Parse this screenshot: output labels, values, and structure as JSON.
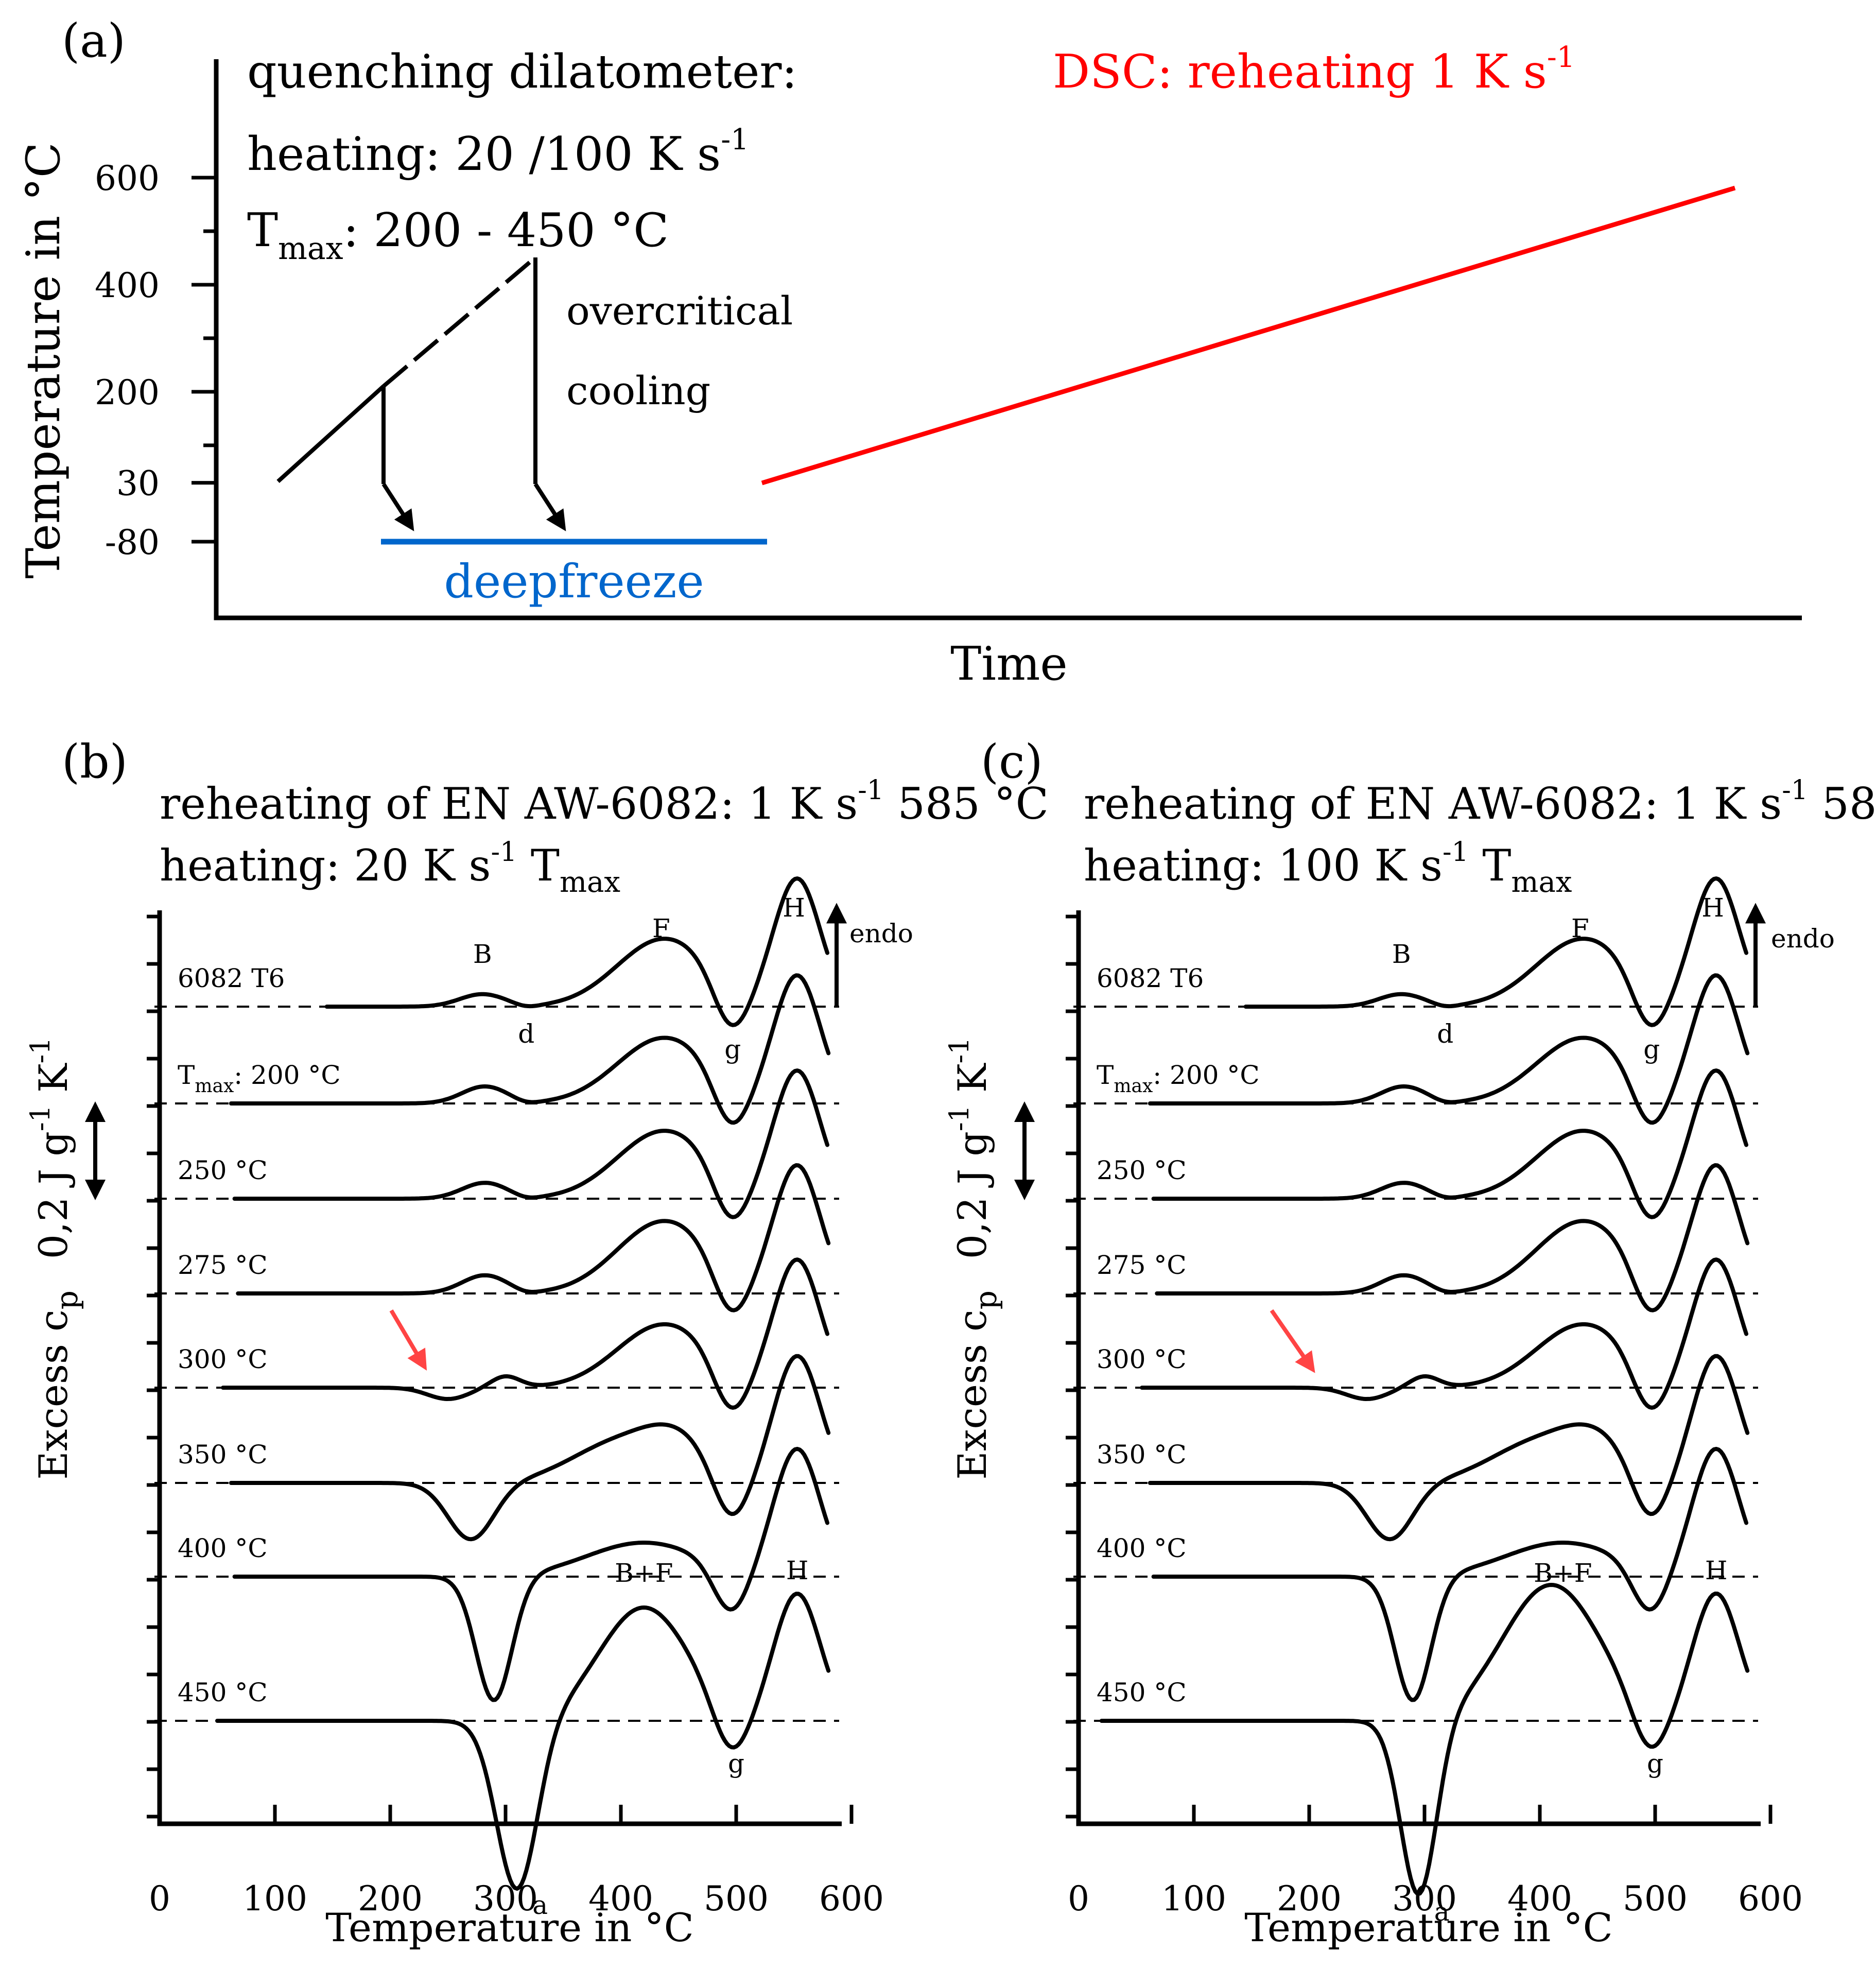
{
  "chart_data": [
    {
      "panel": "(a)",
      "type": "line",
      "xlabel": "Time",
      "ylabel": "Temperature in °C",
      "y_ticks": [
        "-80",
        "30",
        "200",
        "400",
        "600"
      ],
      "ylim": [
        -80,
        600
      ],
      "annotations": {
        "dilatometer": "quenching dilatometer:",
        "heating": "heating: 20 /100 K s",
        "heating_sup": "-1",
        "tmax_main": "T",
        "tmax_sub": "max",
        "tmax_range": ": 200 - 450 °C",
        "overcritical": "overcritical",
        "cooling": "cooling",
        "deepfreeze": "deepfreeze",
        "dsc": "DSC: reheating 1 K s",
        "dsc_sup": "-1"
      },
      "colors": {
        "dsc": "#ff0000",
        "deepfreeze": "#0066cc"
      },
      "series": [
        {
          "name": "heating to 200 °C",
          "points": [
            [
              0.0,
              30
            ],
            [
              0.16,
              200
            ]
          ]
        },
        {
          "name": "heating to 450 °C (dashed)",
          "points": [
            [
              0.16,
              200
            ],
            [
              0.41,
              450
            ]
          ]
        },
        {
          "name": "cooling from 200 °C",
          "points": [
            [
              0.16,
              200
            ],
            [
              0.16,
              -80
            ]
          ]
        },
        {
          "name": "cooling from 450 °C",
          "points": [
            [
              0.41,
              450
            ],
            [
              0.41,
              -80
            ]
          ]
        },
        {
          "name": "deepfreeze",
          "points": [
            [
              0.16,
              -80
            ],
            [
              0.77,
              -80
            ]
          ]
        },
        {
          "name": "DSC reheating",
          "points": [
            [
              0.77,
              30
            ],
            [
              2.3,
              585
            ]
          ]
        }
      ]
    },
    {
      "panel": "(b)",
      "type": "line",
      "title_line1": "reheating of EN AW-6082: 1 K s",
      "title_line1_sup": "-1",
      "title_line1_end": " 585 °C",
      "title_line2": "heating: 20 K s",
      "title_line2_sup": "-1",
      "title_line2_tmax": " T",
      "title_line2_sub": "max",
      "xlabel": "Temperature in °C",
      "ylabel_main": "Excess c",
      "ylabel_sub": "p",
      "scale_label": "0,2 J g",
      "scale_sup1": "-1",
      "scale_mid": " K",
      "scale_sup2": "-1",
      "scale_value": 0.2,
      "xlim": [
        0,
        600
      ],
      "x_ticks": [
        "0",
        "100",
        "200",
        "300",
        "400",
        "500",
        "600"
      ],
      "endo": "endo",
      "curves": [
        {
          "label": "6082 T6",
          "tmin": 145,
          "tmax": 580,
          "peaks": [
            [
              280,
              0.055,
              28
            ],
            [
              318,
              -0.01,
              14
            ],
            [
              438,
              0.3,
              58
            ],
            [
              495,
              -0.2,
              21
            ],
            [
              553,
              0.56,
              28
            ]
          ]
        },
        {
          "label_main": "T",
          "label_sub": "max",
          "label_end": ": 200 °C",
          "tmin": 62,
          "tmax": 580,
          "peaks": [
            [
              282,
              0.075,
              28
            ],
            [
              318,
              -0.01,
              14
            ],
            [
              438,
              0.29,
              58
            ],
            [
              495,
              -0.2,
              21
            ],
            [
              553,
              0.56,
              28
            ]
          ]
        },
        {
          "label": "250 °C",
          "tmin": 65,
          "tmax": 580,
          "peaks": [
            [
              282,
              0.07,
              28
            ],
            [
              318,
              -0.01,
              14
            ],
            [
              438,
              0.3,
              58
            ],
            [
              495,
              -0.2,
              21
            ],
            [
              553,
              0.56,
              28
            ]
          ]
        },
        {
          "label": "275 °C",
          "tmin": 68,
          "tmax": 580,
          "peaks": [
            [
              282,
              0.08,
              28
            ],
            [
              318,
              -0.01,
              14
            ],
            [
              438,
              0.32,
              58
            ],
            [
              495,
              -0.2,
              21
            ],
            [
              553,
              0.56,
              28
            ]
          ]
        },
        {
          "label": "300 °C",
          "tmin": 55,
          "tmax": 580,
          "peaks": [
            [
              250,
              -0.05,
              25
            ],
            [
              300,
              0.05,
              18
            ],
            [
              438,
              0.28,
              58
            ],
            [
              495,
              -0.2,
              21
            ],
            [
              553,
              0.56,
              28
            ]
          ]
        },
        {
          "label": "350 °C",
          "tmin": 62,
          "tmax": 580,
          "peaks": [
            [
              270,
              -0.25,
              28
            ],
            [
              400,
              0.18,
              60
            ],
            [
              450,
              0.15,
              40
            ],
            [
              495,
              -0.2,
              21
            ],
            [
              553,
              0.56,
              28
            ]
          ]
        },
        {
          "label": "400 °C",
          "tmin": 65,
          "tmax": 580,
          "peaks": [
            [
              290,
              -0.55,
              22
            ],
            [
              420,
              0.15,
              70
            ],
            [
              495,
              -0.2,
              21
            ],
            [
              553,
              0.56,
              28
            ]
          ]
        },
        {
          "label": "450 °C",
          "tmin": 50,
          "tmax": 580,
          "annot": [
            "B+F",
            "H",
            "a",
            "g"
          ],
          "peaks": [
            [
              310,
              -0.75,
              25
            ],
            [
              420,
              0.5,
              55
            ],
            [
              495,
              -0.2,
              21
            ],
            [
              553,
              0.56,
              28
            ]
          ]
        }
      ],
      "peak_labels": [
        "B",
        "F",
        "H",
        "d",
        "g",
        "a"
      ]
    },
    {
      "panel": "(c)",
      "type": "line",
      "title_line1": "reheating of EN AW-6082: 1 K s",
      "title_line1_sup": "-1",
      "title_line1_end": " 585 °C",
      "title_line2": "heating: 100 K s",
      "title_line2_sup": "-1",
      "title_line2_tmax": " T",
      "title_line2_sub": "max",
      "xlabel": "Temperature in °C",
      "ylabel_main": "Excess c",
      "ylabel_sub": "p",
      "scale_label": "0,2 J g",
      "scale_sup1": "-1",
      "scale_mid": " K",
      "scale_sup2": "-1",
      "scale_value": 0.2,
      "xlim": [
        0,
        600
      ],
      "x_ticks": [
        "0",
        "100",
        "200",
        "300",
        "400",
        "500",
        "600"
      ],
      "endo": "endo",
      "curves": [
        {
          "label": "6082 T6",
          "tmin": 145,
          "tmax": 580,
          "peaks": [
            [
              280,
              0.055,
              28
            ],
            [
              318,
              -0.01,
              14
            ],
            [
              438,
              0.3,
              58
            ],
            [
              495,
              -0.2,
              21
            ],
            [
              553,
              0.56,
              28
            ]
          ]
        },
        {
          "label_main": "T",
          "label_sub": "max",
          "label_end": ": 200 °C",
          "tmin": 62,
          "tmax": 580,
          "peaks": [
            [
              282,
              0.075,
              28
            ],
            [
              318,
              -0.01,
              14
            ],
            [
              438,
              0.29,
              58
            ],
            [
              495,
              -0.2,
              21
            ],
            [
              553,
              0.56,
              28
            ]
          ]
        },
        {
          "label": "250 °C",
          "tmin": 65,
          "tmax": 580,
          "peaks": [
            [
              282,
              0.07,
              28
            ],
            [
              318,
              -0.01,
              14
            ],
            [
              438,
              0.3,
              58
            ],
            [
              495,
              -0.2,
              21
            ],
            [
              553,
              0.56,
              28
            ]
          ]
        },
        {
          "label": "275 °C",
          "tmin": 68,
          "tmax": 580,
          "peaks": [
            [
              282,
              0.08,
              28
            ],
            [
              318,
              -0.01,
              14
            ],
            [
              438,
              0.32,
              58
            ],
            [
              495,
              -0.2,
              21
            ],
            [
              553,
              0.56,
              28
            ]
          ]
        },
        {
          "label": "300 °C",
          "tmin": 55,
          "tmax": 580,
          "peaks": [
            [
              250,
              -0.05,
              25
            ],
            [
              300,
              0.05,
              18
            ],
            [
              438,
              0.28,
              58
            ],
            [
              495,
              -0.2,
              21
            ],
            [
              553,
              0.56,
              28
            ]
          ]
        },
        {
          "label": "350 °C",
          "tmin": 62,
          "tmax": 580,
          "peaks": [
            [
              270,
              -0.25,
              28
            ],
            [
              400,
              0.18,
              60
            ],
            [
              450,
              0.15,
              40
            ],
            [
              495,
              -0.2,
              21
            ],
            [
              553,
              0.56,
              28
            ]
          ]
        },
        {
          "label": "400 °C",
          "tmin": 65,
          "tmax": 580,
          "peaks": [
            [
              290,
              -0.55,
              22
            ],
            [
              420,
              0.15,
              70
            ],
            [
              495,
              -0.2,
              21
            ],
            [
              553,
              0.56,
              28
            ]
          ]
        },
        {
          "label": "450 °C",
          "tmin": 20,
          "tmax": 580,
          "annot": [
            "B+F",
            "H",
            "a",
            "g"
          ],
          "peaks": [
            [
              295,
              -0.78,
              22
            ],
            [
              410,
              0.6,
              60
            ],
            [
              495,
              -0.2,
              21
            ],
            [
              553,
              0.56,
              28
            ]
          ]
        }
      ],
      "peak_labels": [
        "B",
        "F",
        "H",
        "d",
        "g",
        "a"
      ]
    }
  ]
}
